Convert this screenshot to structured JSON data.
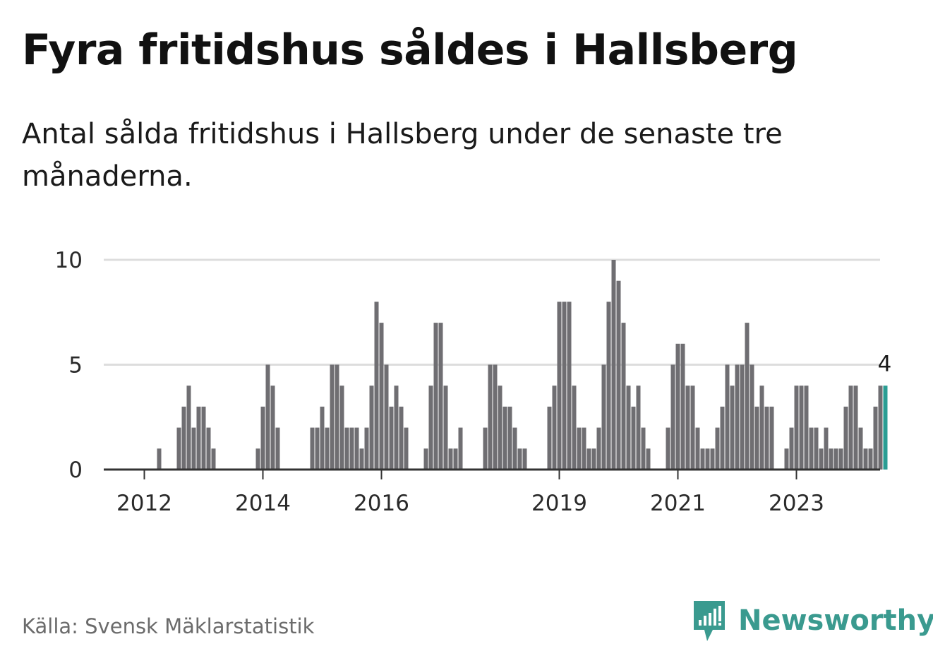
{
  "title": "Fyra fritidshus såldes i Hallsberg",
  "subtitle": "Antal sålda fritidshus i Hallsberg under de senaste tre månaderna.",
  "source": "Källa: Svensk Mäklarstatistik",
  "brand": {
    "name": "Newsworthy",
    "icon": "newsworthy-logo-icon"
  },
  "colors": {
    "bar": "#6f6e72",
    "highlight": "#2a9d93",
    "grid": "#dddddd",
    "axis": "#333333",
    "brand": "#3a9a8f"
  },
  "chart_data": {
    "type": "bar",
    "title": "Fyra fritidshus såldes i Hallsberg",
    "xlabel": "",
    "ylabel": "",
    "ylim": [
      0,
      10
    ],
    "yticks": [
      "0",
      "5",
      "10"
    ],
    "xticks": [
      {
        "label": "2012",
        "index": 1
      },
      {
        "label": "2014",
        "index": 25
      },
      {
        "label": "2016",
        "index": 49
      },
      {
        "label": "2019",
        "index": 85
      },
      {
        "label": "2021",
        "index": 109
      },
      {
        "label": "2023",
        "index": 133
      }
    ],
    "start": "2011-10",
    "highlight_label": "4",
    "values": [
      0,
      0,
      0,
      0,
      1,
      0,
      0,
      0,
      2,
      3,
      4,
      2,
      3,
      3,
      2,
      1,
      0,
      0,
      0,
      0,
      0,
      0,
      0,
      0,
      1,
      3,
      5,
      4,
      2,
      0,
      0,
      0,
      0,
      0,
      0,
      2,
      2,
      3,
      2,
      5,
      5,
      4,
      2,
      2,
      2,
      1,
      2,
      4,
      8,
      7,
      5,
      3,
      4,
      3,
      2,
      0,
      0,
      0,
      1,
      4,
      7,
      7,
      4,
      1,
      1,
      2,
      0,
      0,
      0,
      0,
      2,
      5,
      5,
      4,
      3,
      3,
      2,
      1,
      1,
      0,
      0,
      0,
      0,
      3,
      4,
      8,
      8,
      8,
      4,
      2,
      2,
      1,
      1,
      2,
      5,
      8,
      10,
      9,
      7,
      4,
      3,
      4,
      2,
      1,
      0,
      0,
      0,
      2,
      5,
      6,
      6,
      4,
      4,
      2,
      1,
      1,
      1,
      2,
      3,
      5,
      4,
      5,
      5,
      7,
      5,
      3,
      4,
      3,
      3,
      0,
      0,
      1,
      2,
      4,
      4,
      4,
      2,
      2,
      1,
      2,
      1,
      1,
      1,
      3,
      4,
      4,
      2,
      1,
      1,
      3,
      4,
      4
    ]
  }
}
